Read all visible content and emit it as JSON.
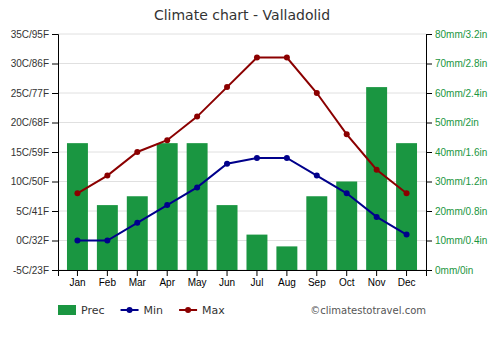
{
  "chart_data": {
    "type": "bar",
    "title": "Climate chart - Valladolid",
    "categories": [
      "Jan",
      "Feb",
      "Mar",
      "Apr",
      "May",
      "Jun",
      "Jul",
      "Aug",
      "Sep",
      "Oct",
      "Nov",
      "Dec"
    ],
    "series": [
      {
        "name": "Prec",
        "type": "bar",
        "axis": "y2",
        "color": "#1a9641",
        "values": [
          43,
          22,
          25,
          43,
          43,
          22,
          12,
          8,
          25,
          30,
          62,
          43
        ]
      },
      {
        "name": "Min",
        "type": "line",
        "color": "#00008b",
        "marker": "circle",
        "values": [
          0,
          0,
          3,
          6,
          9,
          13,
          14,
          14,
          11,
          8,
          4,
          1
        ]
      },
      {
        "name": "Max",
        "type": "line",
        "color": "#8b0000",
        "marker": "circle",
        "values": [
          8,
          11,
          15,
          17,
          21,
          26,
          31,
          31,
          25,
          18,
          12,
          8
        ]
      }
    ],
    "ylim": [
      -5,
      35
    ],
    "yticks": [
      {
        "value": -5,
        "label": "-5C/23F"
      },
      {
        "value": 0,
        "label": "0C/32F"
      },
      {
        "value": 5,
        "label": "5C/41F"
      },
      {
        "value": 10,
        "label": "10C/50F"
      },
      {
        "value": 15,
        "label": "15C/59F"
      },
      {
        "value": 20,
        "label": "20C/68F"
      },
      {
        "value": 25,
        "label": "25C/77F"
      },
      {
        "value": 30,
        "label": "30C/86F"
      },
      {
        "value": 35,
        "label": "35C/95F"
      }
    ],
    "y2lim": [
      0,
      80
    ],
    "y2ticks": [
      {
        "value": 0,
        "label": "0mm/0in"
      },
      {
        "value": 10,
        "label": "10mm/0.4in"
      },
      {
        "value": 20,
        "label": "20mm/0.8in"
      },
      {
        "value": 30,
        "label": "30mm/1.2in"
      },
      {
        "value": 40,
        "label": "40mm/1.6in"
      },
      {
        "value": 50,
        "label": "50mm/2in"
      },
      {
        "value": 60,
        "label": "60mm/2.4in"
      },
      {
        "value": 70,
        "label": "70mm/2.8in"
      },
      {
        "value": 80,
        "label": "80mm/3.2in"
      }
    ],
    "grid": true,
    "legend": "bottom",
    "annotations": [
      {
        "text": "©climatestotravel.com"
      }
    ]
  }
}
